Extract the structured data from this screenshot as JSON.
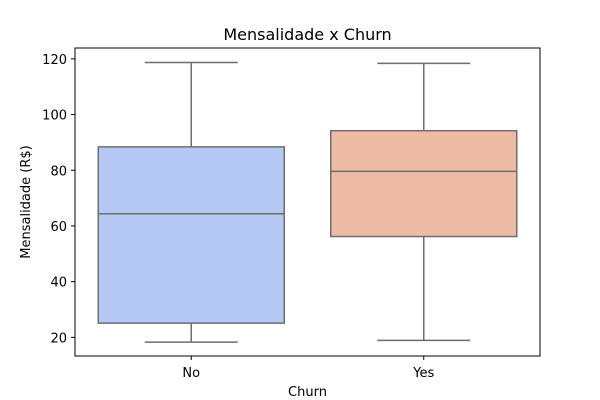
{
  "chart_data": {
    "type": "boxplot",
    "title": "Mensalidade x Churn",
    "xlabel": "Churn",
    "ylabel": "Mensalidade (R$)",
    "categories": [
      "No",
      "Yes"
    ],
    "boxes": [
      {
        "category": "No",
        "whisker_low": 18.3,
        "q1": 25.1,
        "median": 64.4,
        "q3": 88.4,
        "whisker_high": 118.7,
        "color": "#b4c8f4"
      },
      {
        "category": "Yes",
        "whisker_low": 18.9,
        "q1": 56.2,
        "median": 79.6,
        "q3": 94.2,
        "whisker_high": 118.4,
        "color": "#eebca5"
      }
    ],
    "yticks": [
      20,
      40,
      60,
      80,
      100,
      120
    ],
    "ylim": [
      13.3,
      123.9
    ],
    "grid": false,
    "line_color": "#6e6e6e"
  }
}
